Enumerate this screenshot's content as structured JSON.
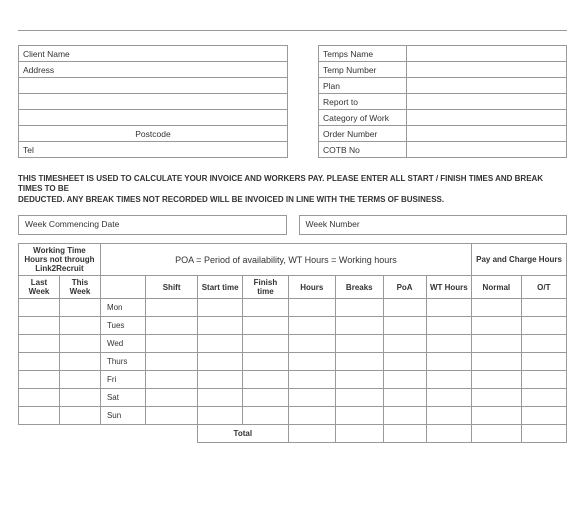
{
  "client_block": {
    "client_name_label": "Client Name",
    "address_label": "Address",
    "postcode_label": "Postcode",
    "tel_label": "Tel"
  },
  "temps_block": {
    "temps_name_label": "Temps Name",
    "temp_number_label": "Temp Number",
    "plan_label": "Plan",
    "report_to_label": "Report to",
    "category_label": "Category of Work",
    "order_number_label": "Order Number",
    "cotb_label": "COTB No"
  },
  "notice_line1": "THIS TIMESHEET IS USED TO CALCULATE YOUR INVOICE AND WORKERS PAY. PLEASE ENTER ALL START / FINISH TIMES AND BREAK TIMES TO BE",
  "notice_line2": "DEDUCTED. ANY BREAK TIMES NOT RECORDED WILL BE INVOICED IN LINE WITH THE TERMS OF BUSINESS.",
  "week_commencing_label": "Week Commencing Date",
  "week_number_label": "Week Number",
  "main_table": {
    "working_time_header": "Working Time Hours not through Link2Recruit",
    "poa_header": "POA = Period of availability, WT Hours = Working hours",
    "pay_charge_header": "Pay and Charge Hours",
    "last_week": "Last Week",
    "this_week": "This Week",
    "shift": "Shift",
    "start_time": "Start time",
    "finish_time": "Finish time",
    "hours": "Hours",
    "breaks": "Breaks",
    "poa": "PoA",
    "wt_hours": "WT Hours",
    "normal": "Normal",
    "ot": "O/T",
    "days": [
      "Mon",
      "Tues",
      "Wed",
      "Thurs",
      "Fri",
      "Sat",
      "Sun"
    ],
    "total": "Total"
  },
  "colors": {
    "border": "#999999",
    "text": "#333333",
    "background": "#ffffff"
  }
}
